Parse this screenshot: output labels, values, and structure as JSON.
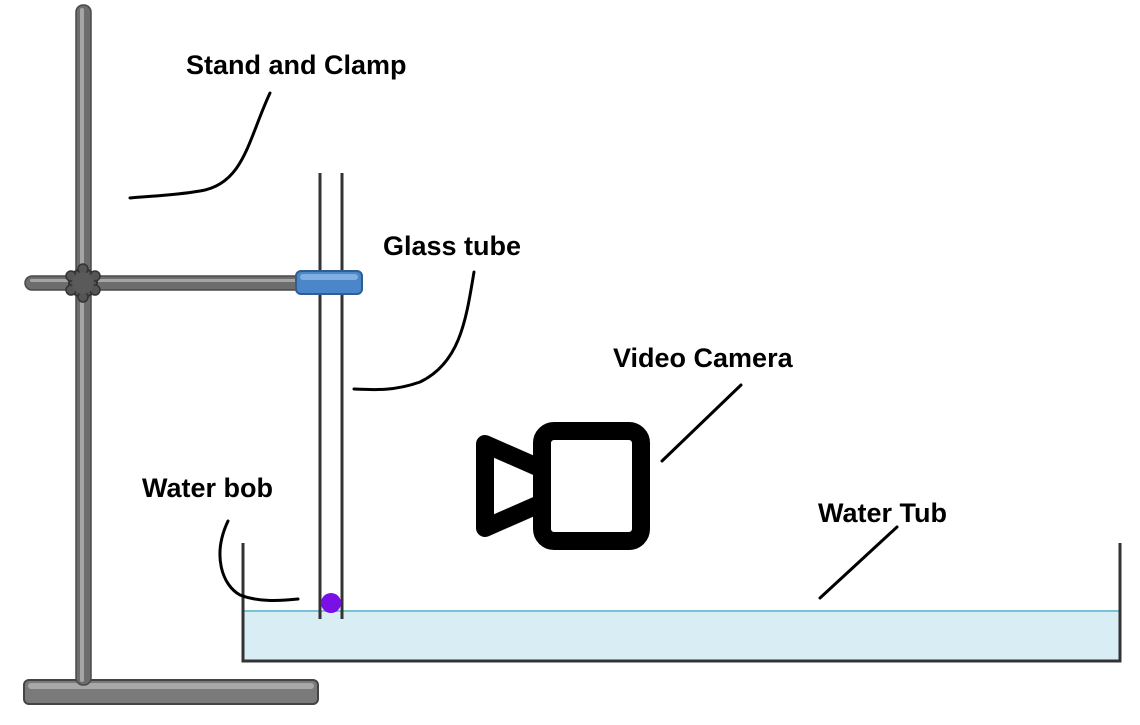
{
  "labels": {
    "stand_and_clamp": "Stand and Clamp",
    "glass_tube": "Glass tube",
    "video_camera": "Video Camera",
    "water_bob": "Water bob",
    "water_tub": "Water Tub"
  },
  "colors": {
    "stand_metal": "#6d6d6d",
    "stand_metal_light": "#9a9a9a",
    "clamp_blue": "#4a86c9",
    "water_fill": "#d9eef4",
    "water_surface": "#7cc1d6",
    "bob_purple": "#7a10e6",
    "outline": "#333333"
  },
  "icons": {
    "camera": "video-camera-icon",
    "clamp_knob": "knob-icon"
  }
}
